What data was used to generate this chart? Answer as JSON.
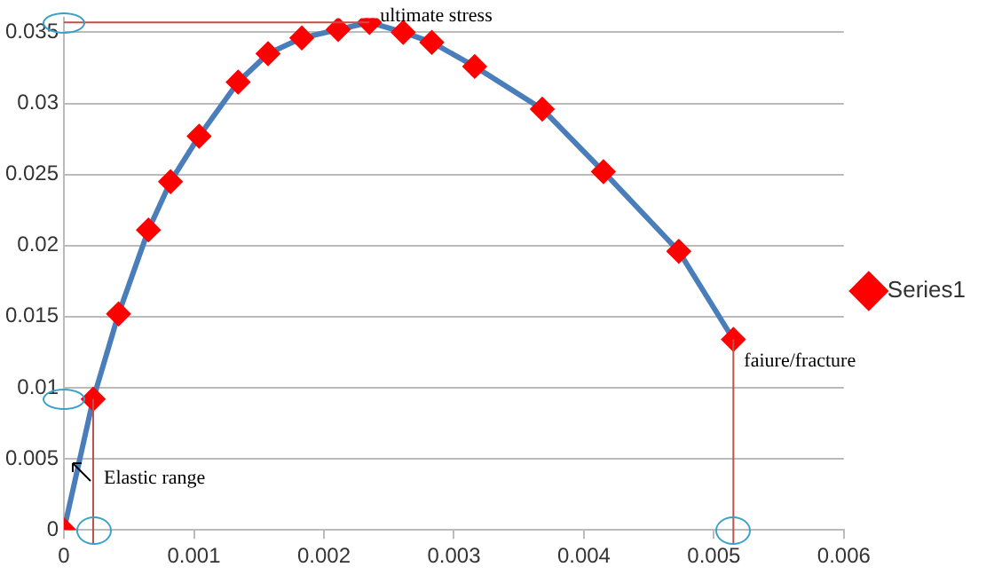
{
  "chart_data": {
    "type": "line",
    "x": [
      0,
      0.000225,
      0.00042,
      0.00065,
      0.00082,
      0.00104,
      0.00134,
      0.00157,
      0.00183,
      0.00211,
      0.00235,
      0.00261,
      0.00283,
      0.00316,
      0.00368,
      0.00415,
      0.00473,
      0.00515
    ],
    "series": [
      {
        "name": "Series1",
        "color": "#4a7ebb",
        "colors": [
          "#ff0000",
          "#ff0000",
          "#ff0000",
          "#ff0000",
          "#ff0000",
          "#ff0000",
          "#ff0000",
          "#ff0000",
          "#ff0000",
          "#ff0000",
          "#ff0000",
          "#ff0000",
          "#ff0000",
          "#ff0000",
          "#ff0000",
          "#ff0000",
          "#ff0000",
          "#ff0000"
        ],
        "values": [
          0,
          0.0092,
          0.0152,
          0.0211,
          0.0245,
          0.0277,
          0.0315,
          0.0335,
          0.0346,
          0.0352,
          0.0357,
          0.035,
          0.0343,
          0.0326,
          0.0296,
          0.0252,
          0.0196,
          0.0134
        ]
      }
    ],
    "xlim": [
      0,
      0.006
    ],
    "xticks": [
      0,
      0.001,
      0.002,
      0.003,
      0.004,
      0.005,
      0.006
    ],
    "ylim": [
      0,
      0.036
    ],
    "yticks": [
      0,
      0.005,
      0.01,
      0.015,
      0.02,
      0.025,
      0.03,
      0.035
    ],
    "grid": "y",
    "legend": "right",
    "marker": "diamond",
    "line_style": "solid",
    "ref_lines": [
      {
        "axis": "y",
        "value": 0.0357,
        "color": "#c0504d"
      },
      {
        "axis": "x",
        "value": 0.000225,
        "color": "#c0504d"
      },
      {
        "axis": "x",
        "value": 0.00515,
        "color": "#c0504d"
      }
    ],
    "annotations": [
      {
        "text": "ultimate stress",
        "x": 0.00235,
        "y": 0.0357
      },
      "Elastic range",
      {
        "text": "faiure/fracture",
        "x": 0.00515,
        "y": 0.0134
      }
    ]
  }
}
